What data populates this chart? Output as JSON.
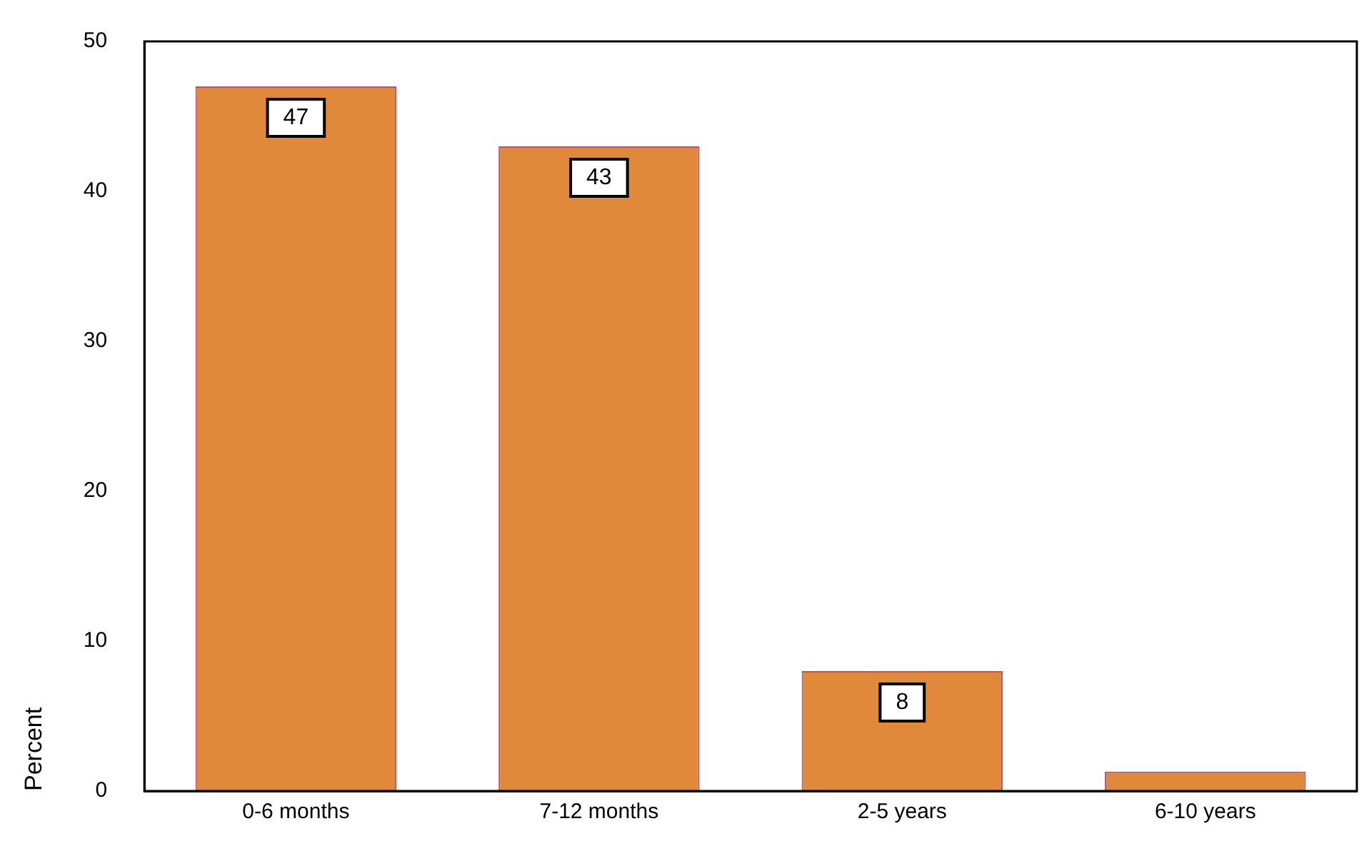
{
  "chart_data": {
    "type": "bar",
    "ylabel": "Percent",
    "categories": [
      "0-6 months",
      "7-12 months",
      "2-5 years",
      "6-10 years"
    ],
    "values": [
      47,
      43,
      8,
      1.3
    ],
    "value_labels": [
      "47",
      "43",
      "8",
      null
    ],
    "color": "#e0893a",
    "ylim": [
      0,
      50
    ],
    "yticks": [
      0,
      10,
      20,
      30,
      40,
      50
    ],
    "grid": false,
    "legend": false
  }
}
